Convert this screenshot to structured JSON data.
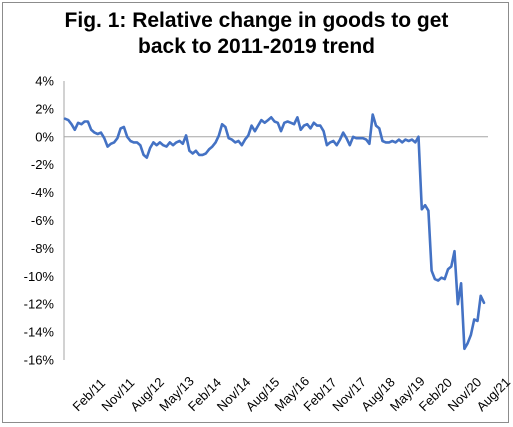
{
  "chart_data": {
    "type": "line",
    "title_line1": "Fig. 1: Relative change in goods to get",
    "title_line2": "back to 2011-2019 trend",
    "xlabel": "",
    "ylabel": "",
    "ylim": [
      -16,
      4
    ],
    "yticks": [
      "4%",
      "2%",
      "0%",
      "-2%",
      "-4%",
      "-6%",
      "-8%",
      "-10%",
      "-12%",
      "-14%",
      "-16%"
    ],
    "ytick_values": [
      4,
      2,
      0,
      -2,
      -4,
      -6,
      -8,
      -10,
      -12,
      -14,
      -16
    ],
    "xticks": [
      "Feb/11",
      "Nov/11",
      "Aug/12",
      "May/13",
      "Feb/14",
      "Nov/14",
      "Aug/15",
      "May/16",
      "Feb/17",
      "Nov/17",
      "Aug/18",
      "May/19",
      "Feb/20",
      "Nov/20",
      "Aug/21"
    ],
    "grid": false,
    "legend": "none",
    "line_color": "#4472c4",
    "series": [
      {
        "values": [
          1.3,
          1.2,
          0.9,
          0.5,
          1.0,
          0.9,
          1.1,
          1.1,
          0.5,
          0.3,
          0.2,
          0.3,
          -0.1,
          -0.7,
          -0.5,
          -0.4,
          -0.1,
          0.6,
          0.7,
          0.0,
          -0.3,
          -0.4,
          -0.4,
          -0.6,
          -1.3,
          -1.5,
          -0.8,
          -0.4,
          -0.6,
          -0.4,
          -0.6,
          -0.7,
          -0.4,
          -0.6,
          -0.4,
          -0.3,
          -0.5,
          0.1,
          -1.0,
          -1.2,
          -1.0,
          -1.3,
          -1.3,
          -1.2,
          -0.9,
          -0.7,
          -0.4,
          0.1,
          0.9,
          0.7,
          -0.1,
          -0.2,
          -0.4,
          -0.3,
          -0.6,
          -0.2,
          0.1,
          0.8,
          0.4,
          0.8,
          1.2,
          1.0,
          1.2,
          1.4,
          1.1,
          1.0,
          0.4,
          1.0,
          1.1,
          1.0,
          0.9,
          1.4,
          0.5,
          0.8,
          0.9,
          0.6,
          1.0,
          0.8,
          0.8,
          0.4,
          -0.6,
          -0.4,
          -0.3,
          -0.6,
          -0.2,
          0.3,
          -0.1,
          -0.6,
          0.0,
          -0.1,
          -0.1,
          -0.1,
          -0.2,
          -0.5,
          1.6,
          0.8,
          0.6,
          -0.3,
          -0.4,
          -0.4,
          -0.3,
          -0.4,
          -0.2,
          -0.4,
          -0.2,
          -0.3,
          -0.2,
          -0.4,
          0.0,
          -5.2,
          -4.9,
          -5.3,
          -9.6,
          -10.2,
          -10.3,
          -10.1,
          -10.2,
          -9.5,
          -9.3,
          -8.2,
          -12.0,
          -10.5,
          -15.2,
          -14.8,
          -14.2,
          -13.1,
          -13.2,
          -11.4,
          -11.9
        ]
      }
    ]
  }
}
